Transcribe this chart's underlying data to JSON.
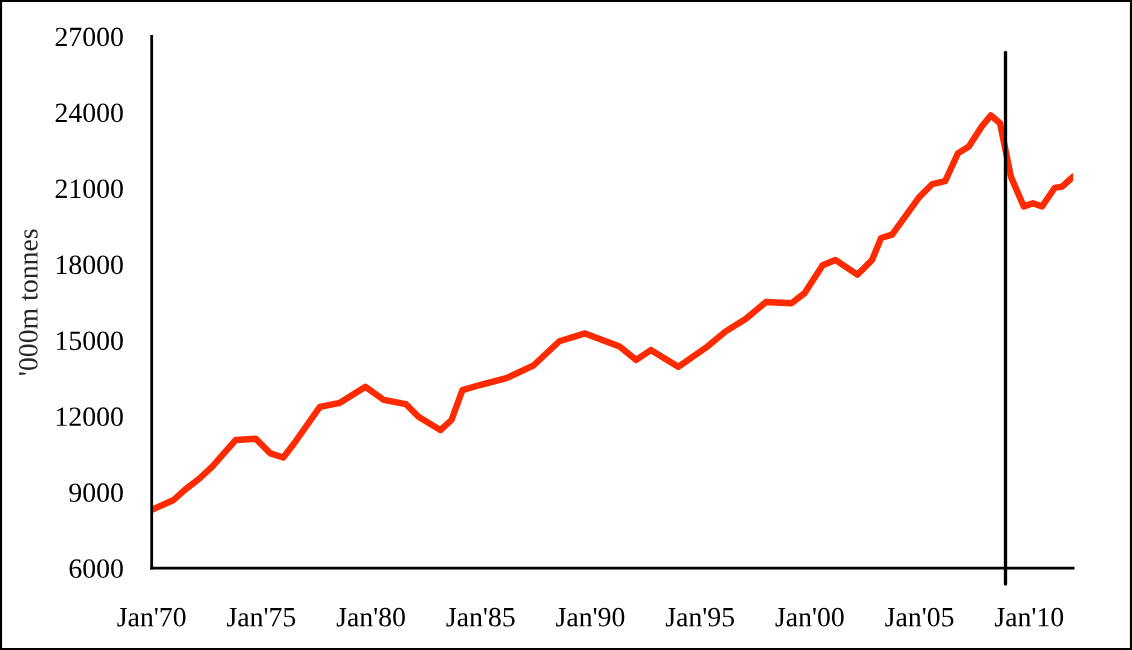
{
  "chart_data": {
    "type": "line",
    "ylabel": "'000m tonnes",
    "x": [
      "1970-01",
      "1971-01",
      "1971-07",
      "1972-03",
      "1972-10",
      "1973-11",
      "1974-10",
      "1975-06",
      "1976-01",
      "1976-07",
      "1977-09",
      "1978-08",
      "1979-10",
      "1980-08",
      "1981-08",
      "1982-03",
      "1983-03",
      "1983-09",
      "1984-03",
      "1985-01",
      "1986-03",
      "1987-06",
      "1988-08",
      "1989-10",
      "1991-05",
      "1992-02",
      "1992-10",
      "1994-01",
      "1995-05",
      "1996-03",
      "1997-02",
      "1998-01",
      "1999-03",
      "1999-10",
      "2000-08",
      "2001-03",
      "2002-03",
      "2002-11",
      "2003-04",
      "2003-10",
      "2005-01",
      "2005-08",
      "2006-03",
      "2006-10",
      "2007-04",
      "2007-11",
      "2008-04",
      "2008-09",
      "2009-03",
      "2009-10",
      "2010-03",
      "2010-08",
      "2011-03",
      "2011-07",
      "2012-01"
    ],
    "series": [
      {
        "color": "#ff2a00",
        "values": [
          8300,
          8690,
          9080,
          9530,
          10000,
          11060,
          11110,
          10530,
          10370,
          10930,
          12370,
          12530,
          13160,
          12640,
          12480,
          11980,
          11450,
          11850,
          13030,
          13240,
          13500,
          14010,
          14960,
          15270,
          14750,
          14220,
          14610,
          13950,
          14750,
          15350,
          15850,
          16510,
          16460,
          16850,
          17960,
          18170,
          17590,
          18170,
          19040,
          19170,
          20670,
          21170,
          21280,
          22380,
          22650,
          23440,
          23880,
          23570,
          21460,
          20280,
          20410,
          20280,
          21020,
          21070,
          21460
        ]
      }
    ],
    "xlim": [
      "1970-01",
      "2012-01"
    ],
    "xticks": [
      {
        "value": "1970-01",
        "label": "Jan'70"
      },
      {
        "value": "1975-01",
        "label": "Jan'75"
      },
      {
        "value": "1980-01",
        "label": "Jan'80"
      },
      {
        "value": "1985-01",
        "label": "Jan'85"
      },
      {
        "value": "1990-01",
        "label": "Jan'90"
      },
      {
        "value": "1995-01",
        "label": "Jan'95"
      },
      {
        "value": "2000-01",
        "label": "Jan'00"
      },
      {
        "value": "2005-01",
        "label": "Jan'05"
      },
      {
        "value": "2010-01",
        "label": "Jan'10"
      }
    ],
    "ylim": [
      6000,
      27000
    ],
    "yticks": [
      6000,
      9000,
      12000,
      15000,
      18000,
      21000,
      24000,
      27000
    ],
    "ref_lines": [
      {
        "axis": "x",
        "value": "2008-12",
        "color": "#000000"
      }
    ],
    "grid": false,
    "legend": false,
    "marker": "none",
    "line_style": "solid"
  }
}
